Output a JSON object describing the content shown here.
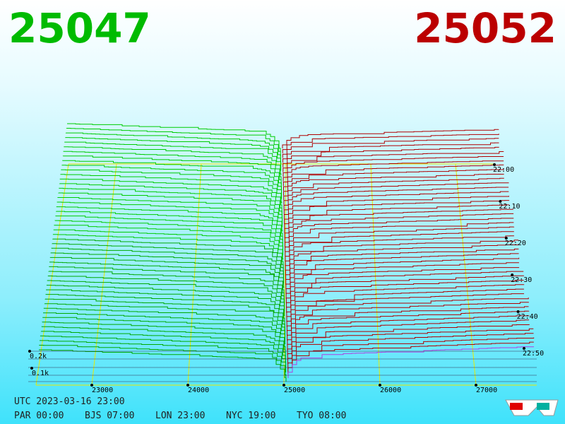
{
  "header": {
    "bid": "25047",
    "ask": "25052"
  },
  "axis": {
    "price_ticks": [
      23000,
      24000,
      25000,
      26000,
      27000
    ],
    "time_ticks": [
      "22:00",
      "22:10",
      "22:20",
      "22:30",
      "22:40",
      "22:50"
    ],
    "depth_ticks": [
      "0.2k",
      "0.1k"
    ]
  },
  "footer": {
    "utc": "UTC 2023-03-16 23:00",
    "clocks": [
      "PAR 00:00",
      "BJS 07:00",
      "LON 23:00",
      "NYC 19:00",
      "TYO 08:00"
    ]
  }
}
